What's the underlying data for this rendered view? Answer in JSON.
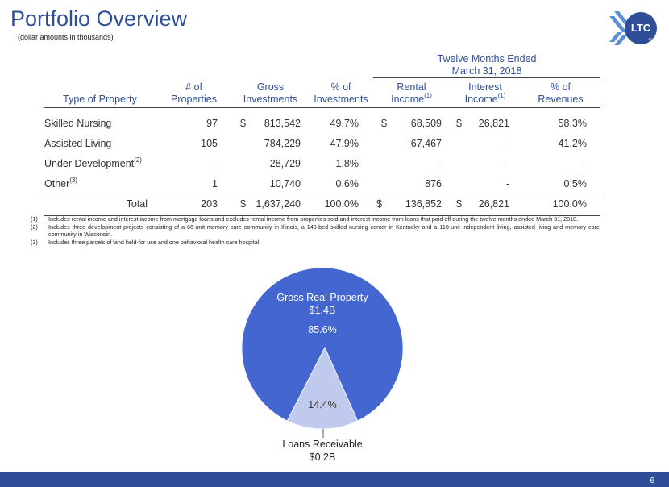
{
  "title": "Portfolio Overview",
  "subtitle": "(dollar amounts in thousands)",
  "logo": {
    "text": "LTC",
    "subtext": "REIT"
  },
  "table": {
    "group_header": [
      "Twelve Months Ended",
      "March 31, 2018"
    ],
    "headers": {
      "type": "Type of Property",
      "properties": [
        "# of",
        "Properties"
      ],
      "gross": [
        "Gross",
        "Investments"
      ],
      "pct_inv": [
        "% of",
        "Investments"
      ],
      "rental": [
        "Rental",
        "Income",
        "(1)"
      ],
      "interest": [
        "Interest",
        "Income",
        "(1)"
      ],
      "pct_rev": [
        "% of",
        "Revenues"
      ]
    },
    "rows": [
      {
        "type": "Skilled Nursing",
        "sup": "",
        "properties": "97",
        "gross_sign": "$",
        "gross": "813,542",
        "pct_inv": "49.7%",
        "rental_sign": "$",
        "rental": "68,509",
        "interest_sign": "$",
        "interest": "26,821",
        "pct_rev": "58.3%"
      },
      {
        "type": "Assisted Living",
        "sup": "",
        "properties": "105",
        "gross_sign": "",
        "gross": "784,229",
        "pct_inv": "47.9%",
        "rental_sign": "",
        "rental": "67,467",
        "interest_sign": "",
        "interest": "-",
        "pct_rev": "41.2%"
      },
      {
        "type": "Under Development",
        "sup": "(2)",
        "properties": "-",
        "gross_sign": "",
        "gross": "28,729",
        "pct_inv": "1.8%",
        "rental_sign": "",
        "rental": "-",
        "interest_sign": "",
        "interest": "-",
        "pct_rev": "-"
      },
      {
        "type": "Other",
        "sup": "(3)",
        "properties": "1",
        "gross_sign": "",
        "gross": "10,740",
        "pct_inv": "0.6%",
        "rental_sign": "",
        "rental": "876",
        "interest_sign": "",
        "interest": "-",
        "pct_rev": "0.5%"
      }
    ],
    "total": {
      "type": "Total",
      "properties": "203",
      "gross_sign": "$",
      "gross": "1,637,240",
      "pct_inv": "100.0%",
      "rental_sign": "$",
      "rental": "136,852",
      "interest_sign": "$",
      "interest": "26,821",
      "pct_rev": "100.0%"
    }
  },
  "footnotes": [
    {
      "num": "(1)",
      "text": "Includes rental income and interest income from mortgage loans and excludes rental income from properties sold and interest income from loans that paid off during the twelve months ended March 31, 2018."
    },
    {
      "num": "(2)",
      "text": "Includes three development projects consisting of a 66-unit memory care community in Illinois, a 143-bed skilled nursing center in Kentucky and a 110-unit independent living, assisted living and memory care community in Wisconsin."
    },
    {
      "num": "(3)",
      "text": "Includes three parcels of land held-for use and one behavioral health care hospital."
    }
  ],
  "chart_data": {
    "type": "pie",
    "slices": [
      {
        "label": "Gross Real Property",
        "amount": "$1.4B",
        "percent_label": "85.6%",
        "value": 85.6,
        "color": "#4466d1"
      },
      {
        "label": "Loans Receivable",
        "amount": "$0.2B",
        "percent_label": "14.4%",
        "value": 14.4,
        "color": "#bfcaee"
      }
    ]
  },
  "colors": {
    "brand": "#2e4f97",
    "pie_main": "#4466d1",
    "pie_minor": "#bfcaee"
  },
  "page_number": "6"
}
